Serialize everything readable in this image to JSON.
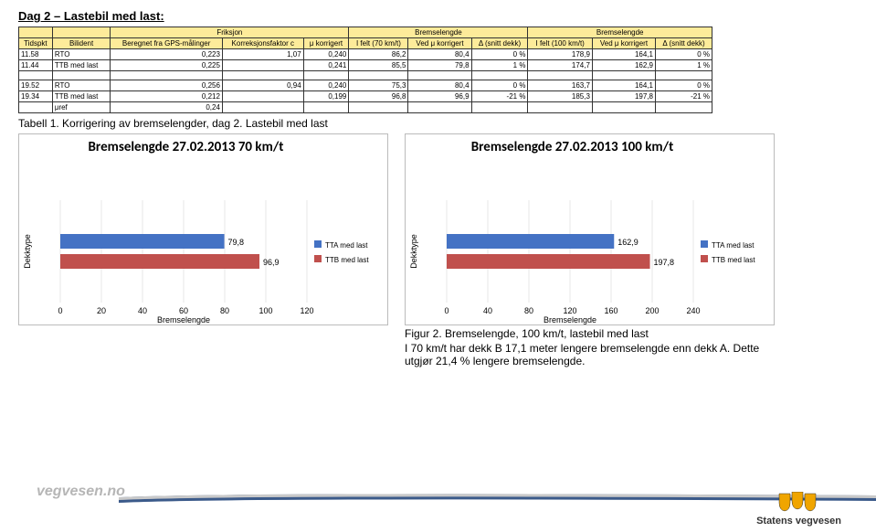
{
  "heading": "Dag 2 – Lastebil med last:",
  "table": {
    "header_groups": [
      "Friksjon",
      "Bremselengde",
      "Bremselengde"
    ],
    "columns": [
      "Tidspkt",
      "Bilident",
      "Beregnet fra GPS-målinger",
      "Korreksjonsfaktor c",
      "μ korrigert",
      "I felt (70 km/t)",
      "Ved μ korrigert",
      "Δ (snitt dekk)",
      "I felt (100 km/t)",
      "Ved μ korrigert",
      "Δ (snitt dekk)"
    ],
    "rows": [
      [
        "11.58",
        "RTO",
        "0,223",
        "1,07",
        "0,240",
        "86,2",
        "80,4",
        "0 %",
        "178,9",
        "164,1",
        "0 %"
      ],
      [
        "11.44",
        "TTB med last",
        "0,225",
        "",
        "0,241",
        "85,5",
        "79,8",
        "1 %",
        "174,7",
        "162,9",
        "1 %"
      ],
      [
        "",
        "",
        "",
        "",
        "",
        "",
        "",
        "",
        "",
        "",
        ""
      ],
      [
        "19.52",
        "RTO",
        "0,256",
        "0,94",
        "0,240",
        "75,3",
        "80,4",
        "0 %",
        "163,7",
        "164,1",
        "0 %"
      ],
      [
        "19.34",
        "TTB med last",
        "0,212",
        "",
        "0,199",
        "96,8",
        "96,9",
        "-21 %",
        "185,3",
        "197,8",
        "-21 %"
      ],
      [
        "",
        "μref",
        "0,24",
        "",
        "",
        "",
        "",
        "",
        "",
        "",
        ""
      ]
    ]
  },
  "caption_table": "Tabell 1. Korrigering av bremselengder, dag 2. Lastebil med last",
  "chart70": {
    "title": "Bremselengde 27.02.2013   70 km/t",
    "ylabel": "Dekktype",
    "xlabel": "Bremselengde",
    "xmax": 120,
    "xtick_step": 20,
    "bars": [
      {
        "label": "79,8",
        "value": 79.8,
        "color": "#4472c4"
      },
      {
        "label": "96,9",
        "value": 96.9,
        "color": "#c0504d"
      }
    ],
    "legend": [
      {
        "label": "TTA med last",
        "color": "#4472c4"
      },
      {
        "label": "TTB med last",
        "color": "#c0504d"
      }
    ]
  },
  "chart100": {
    "title": "Bremselengde 27.02.2013   100 km/t",
    "ylabel": "Dekktype",
    "xlabel": "Bremselengde",
    "xmax": 240,
    "xtick_step": 40,
    "bars": [
      {
        "label": "162,9",
        "value": 162.9,
        "color": "#4472c4"
      },
      {
        "label": "197,8",
        "value": 197.8,
        "color": "#c0504d"
      }
    ],
    "legend": [
      {
        "label": "TTA med last",
        "color": "#4472c4"
      },
      {
        "label": "TTB med last",
        "color": "#c0504d"
      }
    ]
  },
  "caption_fig": "Figur 2. Bremselengde, 100 km/t, lastebil med last",
  "body_text": "I 70 km/t har dekk B 17,1 meter lengere bremselengde enn dekk A. Dette utgjør 21,4 % lengere bremselengde.",
  "footer": {
    "url": "vegvesen.no",
    "org": "Statens vegvesen"
  }
}
